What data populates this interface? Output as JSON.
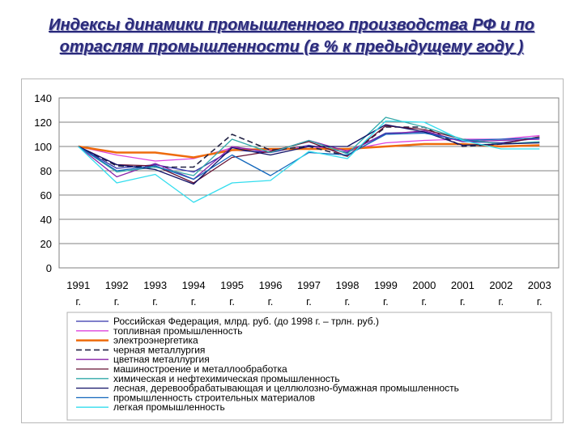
{
  "slide": {
    "title": "Индексы динамики промышленного производства РФ и по отраслям промышленности (в % к предыдущему году )"
  },
  "chart_data": {
    "type": "line",
    "title": "",
    "xlabel": "",
    "ylabel": "",
    "ylim": [
      0,
      140
    ],
    "yticks": [
      "0",
      "20",
      "40",
      "60",
      "80",
      "100",
      "120",
      "140"
    ],
    "grid": true,
    "legend_position": "bottom",
    "categories": [
      "1991 г.",
      "1992 г.",
      "1993 г.",
      "1994 г.",
      "1995 г.",
      "1996 г.",
      "1997 г.",
      "1998 г.",
      "1999 г.",
      "2000 г.",
      "2001 г.",
      "2002 г.",
      "2003 г."
    ],
    "category_years": [
      "1991",
      "1992",
      "1993",
      "1994",
      "1995",
      "1996",
      "1997",
      "1998",
      "1999",
      "2000",
      "2001",
      "2002",
      "2003"
    ],
    "category_suffix": "г.",
    "series": [
      {
        "name": "Российская Федерация, млрд. руб. (до 1998 г. – трлн. руб.)",
        "color": "#3333aa",
        "dash": "",
        "width": 1.3,
        "values": [
          100,
          82,
          85,
          79,
          97,
          95,
          101,
          95,
          111,
          112,
          104,
          103,
          107
        ]
      },
      {
        "name": "топливная промышленность",
        "color": "#dd44dd",
        "dash": "",
        "width": 1.3,
        "values": [
          100,
          93,
          88,
          90,
          99,
          97,
          100,
          97,
          103,
          105,
          106,
          106,
          109
        ]
      },
      {
        "name": "электроэнергетика",
        "color": "#ee6b0c",
        "dash": "",
        "width": 2.5,
        "values": [
          100,
          95,
          95,
          91,
          97,
          98,
          98,
          98,
          100,
          102,
          102,
          100,
          101
        ]
      },
      {
        "name": "черная металлургия",
        "color": "#222244",
        "dash": "7,4",
        "width": 1.6,
        "values": [
          100,
          84,
          83,
          83,
          110,
          97,
          100,
          92,
          116,
          116,
          100,
          102,
          108
        ]
      },
      {
        "name": "цветная металлургия",
        "color": "#8822aa",
        "dash": "",
        "width": 1.3,
        "values": [
          100,
          75,
          86,
          73,
          100,
          95,
          105,
          96,
          110,
          113,
          104,
          105,
          106
        ]
      },
      {
        "name": "машиностроение и металлообработка",
        "color": "#661133",
        "dash": "",
        "width": 1.3,
        "values": [
          100,
          85,
          84,
          70,
          91,
          96,
          104,
          92,
          117,
          114,
          106,
          102,
          108
        ]
      },
      {
        "name": "химическая и нефтехимическая промышленность",
        "color": "#33aaaa",
        "dash": "",
        "width": 1.3,
        "values": [
          100,
          79,
          83,
          76,
          106,
          95,
          105,
          94,
          124,
          116,
          106,
          102,
          104
        ]
      },
      {
        "name": "лесная, деревообрабатывающая и целлюлозно-бумажная промышленность",
        "color": "#111166",
        "dash": "",
        "width": 1.3,
        "values": [
          100,
          85,
          81,
          69,
          99,
          93,
          100,
          100,
          118,
          112,
          101,
          102,
          103
        ]
      },
      {
        "name": "промышленность строительных материалов",
        "color": "#1166bb",
        "dash": "",
        "width": 1.3,
        "values": [
          100,
          80,
          84,
          73,
          93,
          76,
          95,
          93,
          110,
          111,
          105,
          106,
          107
        ]
      },
      {
        "name": "легкая промышленность",
        "color": "#33ddee",
        "dash": "",
        "width": 1.3,
        "values": [
          100,
          70,
          77,
          54,
          70,
          72,
          96,
          90,
          121,
          120,
          105,
          98,
          98
        ]
      }
    ]
  }
}
